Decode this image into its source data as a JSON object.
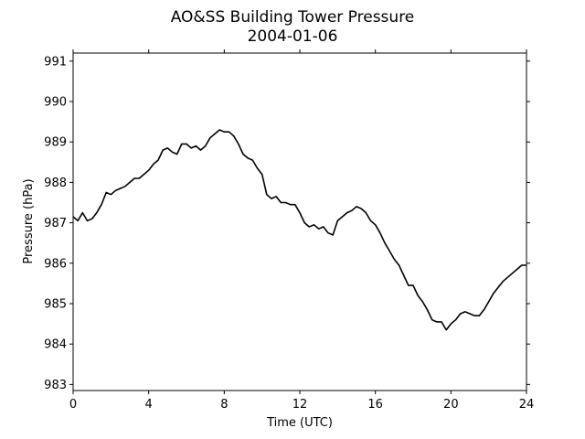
{
  "chart_data": {
    "type": "line",
    "title": "AO&SS Building Tower Pressure",
    "subtitle": "2004-01-06",
    "xlabel": "Time (UTC)",
    "ylabel": "Pressure (hPa)",
    "xlim": [
      0,
      24
    ],
    "ylim": [
      982.85,
      991.2
    ],
    "xticks": [
      0,
      4,
      8,
      12,
      16,
      20,
      24
    ],
    "yticks": [
      983,
      984,
      985,
      986,
      987,
      988,
      989,
      990,
      991
    ],
    "grid": false,
    "line_color": "#000000",
    "series": [
      {
        "x": [
          0,
          0.25,
          0.5,
          0.75,
          1.0,
          1.25,
          1.5,
          1.75,
          2.0,
          2.25,
          2.5,
          2.75,
          3.0,
          3.25,
          3.5,
          3.75,
          4.0,
          4.25,
          4.5,
          4.75,
          5.0,
          5.25,
          5.5,
          5.75,
          6.0,
          6.25,
          6.5,
          6.75,
          7.0,
          7.25,
          7.5,
          7.75,
          8.0,
          8.25,
          8.5,
          8.75,
          9.0,
          9.25,
          9.5,
          9.75,
          10.0,
          10.25,
          10.5,
          10.75,
          11.0,
          11.25,
          11.5,
          11.75,
          12.0,
          12.25,
          12.5,
          12.75,
          13.0,
          13.25,
          13.5,
          13.75,
          14.0,
          14.25,
          14.5,
          14.75,
          15.0,
          15.25,
          15.5,
          15.75,
          16.0,
          16.25,
          16.5,
          16.75,
          17.0,
          17.25,
          17.5,
          17.75,
          18.0,
          18.25,
          18.5,
          18.75,
          19.0,
          19.25,
          19.5,
          19.75,
          20.0,
          20.25,
          20.5,
          20.75,
          21.0,
          21.25,
          21.5,
          21.75,
          22.0,
          22.25,
          22.5,
          22.75,
          23.0,
          23.25,
          23.5,
          23.75,
          24.0
        ],
        "y": [
          987.15,
          987.05,
          987.25,
          987.05,
          987.1,
          987.25,
          987.45,
          987.75,
          987.7,
          987.8,
          987.85,
          987.9,
          988.0,
          988.1,
          988.1,
          988.2,
          988.3,
          988.45,
          988.55,
          988.8,
          988.85,
          988.75,
          988.7,
          988.95,
          988.95,
          988.85,
          988.9,
          988.8,
          988.9,
          989.1,
          989.2,
          989.3,
          989.25,
          989.25,
          989.15,
          988.95,
          988.7,
          988.6,
          988.55,
          988.35,
          988.2,
          987.7,
          987.6,
          987.65,
          987.5,
          987.5,
          987.45,
          987.45,
          987.25,
          987.0,
          986.9,
          986.95,
          986.85,
          986.9,
          986.75,
          986.7,
          987.05,
          987.15,
          987.25,
          987.3,
          987.4,
          987.35,
          987.25,
          987.05,
          986.95,
          986.75,
          986.5,
          986.3,
          986.1,
          985.95,
          985.7,
          985.45,
          985.45,
          985.2,
          985.05,
          984.85,
          984.6,
          984.55,
          984.55,
          984.35,
          984.5,
          984.6,
          984.75,
          984.8,
          984.75,
          984.7,
          984.7,
          984.85,
          985.05,
          985.25,
          985.4,
          985.55,
          985.65,
          985.75,
          985.85,
          985.95,
          985.95
        ]
      }
    ]
  }
}
